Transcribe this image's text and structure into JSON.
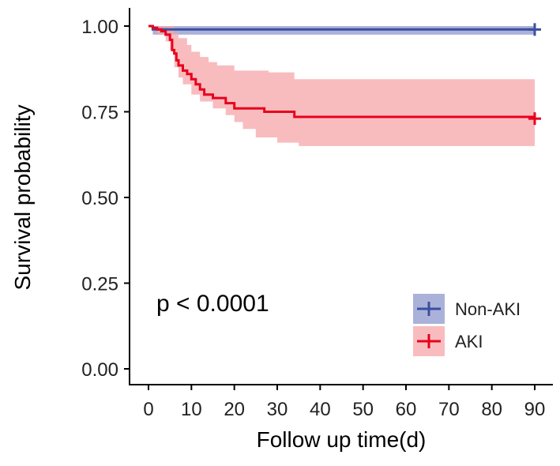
{
  "chart_data": {
    "type": "line",
    "chart_kind": "kaplan-meier",
    "title": "",
    "xlabel": "Follow up time(d)",
    "ylabel": "Survival probability",
    "xlim": [
      0,
      92
    ],
    "ylim": [
      0,
      1.02
    ],
    "x_ticks": [
      0,
      10,
      20,
      30,
      40,
      50,
      60,
      70,
      80,
      90
    ],
    "y_ticks": [
      0,
      0.25,
      0.5,
      0.75,
      1.0
    ],
    "y_tick_labels": [
      "0.00",
      "0.25",
      "0.50",
      "0.75",
      "1.00"
    ],
    "x_tick_labels": [
      "0",
      "10",
      "20",
      "30",
      "40",
      "50",
      "60",
      "70",
      "80",
      "90"
    ],
    "grid": false,
    "legend_position": "bottom-right",
    "annotation": "p < 0.0001",
    "series": [
      {
        "name": "Non-AKI",
        "color": "#3b4fa0",
        "band_color": "#8f98cc",
        "steps": [
          [
            0,
            1.0
          ],
          [
            1,
            0.99
          ],
          [
            90,
            0.99
          ]
        ],
        "ci_lower": [
          [
            0,
            1.0
          ],
          [
            1,
            0.975
          ],
          [
            90,
            0.975
          ]
        ],
        "ci_upper": [
          [
            0,
            1.0
          ],
          [
            1,
            1.0
          ],
          [
            90,
            1.0
          ]
        ],
        "censor": [
          [
            90,
            0.99
          ]
        ]
      },
      {
        "name": "AKI",
        "color": "#e8001c",
        "band_color": "#f6a5aa",
        "steps": [
          [
            0,
            1.0
          ],
          [
            1,
            0.995
          ],
          [
            2,
            0.99
          ],
          [
            3,
            0.985
          ],
          [
            4,
            0.975
          ],
          [
            5,
            0.96
          ],
          [
            5.5,
            0.93
          ],
          [
            6,
            0.92
          ],
          [
            6.5,
            0.9
          ],
          [
            7,
            0.885
          ],
          [
            8,
            0.87
          ],
          [
            9,
            0.86
          ],
          [
            10,
            0.845
          ],
          [
            11,
            0.83
          ],
          [
            12,
            0.815
          ],
          [
            13,
            0.8
          ],
          [
            15,
            0.79
          ],
          [
            18,
            0.775
          ],
          [
            20,
            0.76
          ],
          [
            27,
            0.75
          ],
          [
            34,
            0.735
          ],
          [
            90,
            0.73
          ]
        ],
        "ci_lower": [
          [
            0,
            1.0
          ],
          [
            2,
            0.975
          ],
          [
            4,
            0.955
          ],
          [
            5,
            0.93
          ],
          [
            6,
            0.88
          ],
          [
            7,
            0.85
          ],
          [
            8,
            0.83
          ],
          [
            10,
            0.8
          ],
          [
            12,
            0.78
          ],
          [
            15,
            0.76
          ],
          [
            18,
            0.74
          ],
          [
            20,
            0.72
          ],
          [
            22,
            0.7
          ],
          [
            25,
            0.675
          ],
          [
            30,
            0.66
          ],
          [
            35,
            0.65
          ],
          [
            90,
            0.645
          ]
        ],
        "ci_upper": [
          [
            0,
            1.0
          ],
          [
            5,
            1.0
          ],
          [
            6,
            0.98
          ],
          [
            7,
            0.965
          ],
          [
            9,
            0.945
          ],
          [
            10,
            0.925
          ],
          [
            12,
            0.91
          ],
          [
            14,
            0.895
          ],
          [
            16,
            0.885
          ],
          [
            20,
            0.87
          ],
          [
            28,
            0.865
          ],
          [
            34,
            0.845
          ],
          [
            90,
            0.84
          ]
        ],
        "censor": [
          [
            90,
            0.73
          ]
        ]
      }
    ]
  }
}
